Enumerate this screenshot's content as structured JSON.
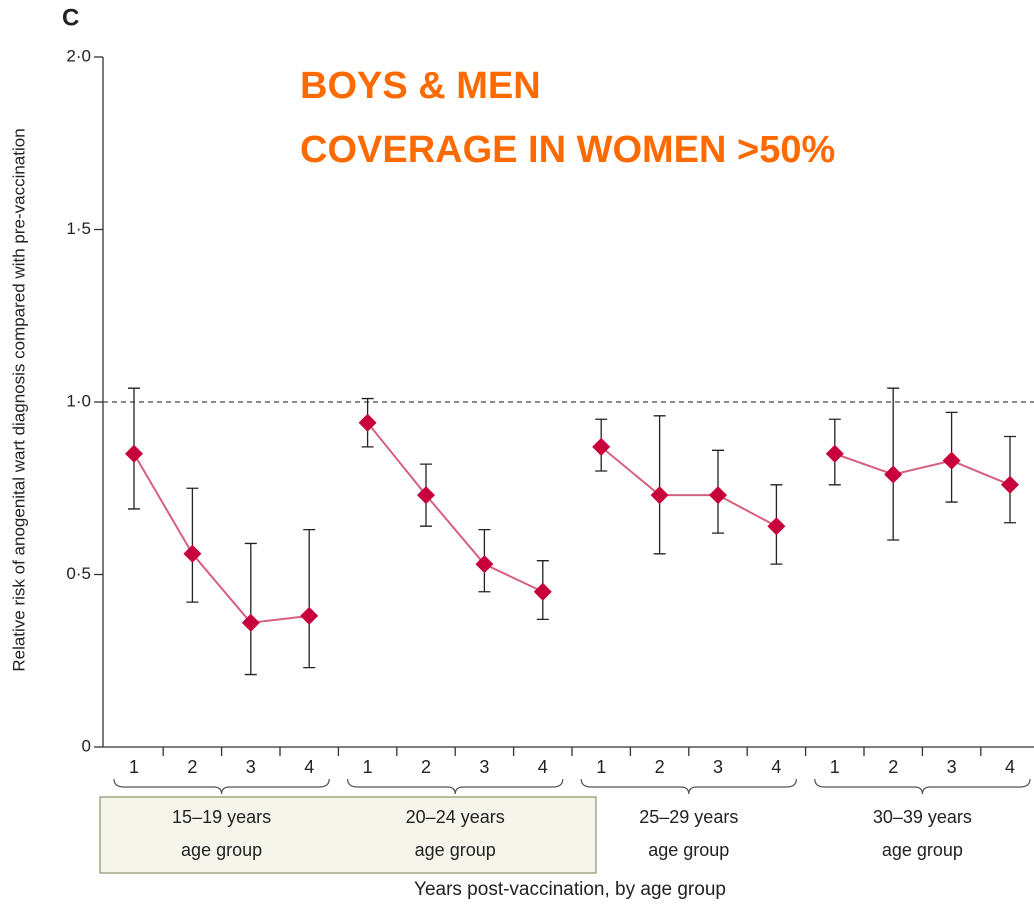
{
  "chart_data": {
    "type": "line",
    "panel": "C",
    "title": [
      "BOYS & MEN",
      "COVERAGE IN WOMEN >50%"
    ],
    "y_label": "Relative risk of anogenital wart diagnosis compared with pre-vaccination",
    "x_label": "Years post-vaccination, by age group",
    "color": "#c8003c",
    "ylim": [
      0,
      2
    ],
    "yticks": [
      {
        "value": 0,
        "label": "0"
      },
      {
        "value": 0.5,
        "label": "0·5"
      },
      {
        "value": 1,
        "label": "1·0"
      },
      {
        "value": 1.5,
        "label": "1·5"
      },
      {
        "value": 2,
        "label": "2·0"
      }
    ],
    "refline": 1,
    "groups": [
      {
        "label": "15–19 years",
        "sublabel": "age group",
        "categories": [
          "1",
          "2",
          "3",
          "4"
        ],
        "values": [
          0.85,
          0.56,
          0.36,
          0.38
        ],
        "lower": [
          0.69,
          0.42,
          0.21,
          0.23
        ],
        "upper": [
          1.04,
          0.75,
          0.59,
          0.63
        ]
      },
      {
        "label": "20–24 years",
        "sublabel": "age group",
        "categories": [
          "1",
          "2",
          "3",
          "4"
        ],
        "values": [
          0.94,
          0.73,
          0.53,
          0.45
        ],
        "lower": [
          0.87,
          0.64,
          0.45,
          0.37
        ],
        "upper": [
          1.01,
          0.82,
          0.63,
          0.54
        ]
      },
      {
        "label": "25–29 years",
        "sublabel": "age group",
        "categories": [
          "1",
          "2",
          "3",
          "4"
        ],
        "values": [
          0.87,
          0.73,
          0.73,
          0.64
        ],
        "lower": [
          0.8,
          0.56,
          0.62,
          0.53
        ],
        "upper": [
          0.95,
          0.96,
          0.86,
          0.76
        ]
      },
      {
        "label": "30–39 years",
        "sublabel": "age group",
        "categories": [
          "1",
          "2",
          "3",
          "4"
        ],
        "values": [
          0.85,
          0.79,
          0.83,
          0.76
        ],
        "lower": [
          0.76,
          0.6,
          0.71,
          0.65
        ],
        "upper": [
          0.95,
          1.04,
          0.97,
          0.9
        ]
      }
    ]
  }
}
